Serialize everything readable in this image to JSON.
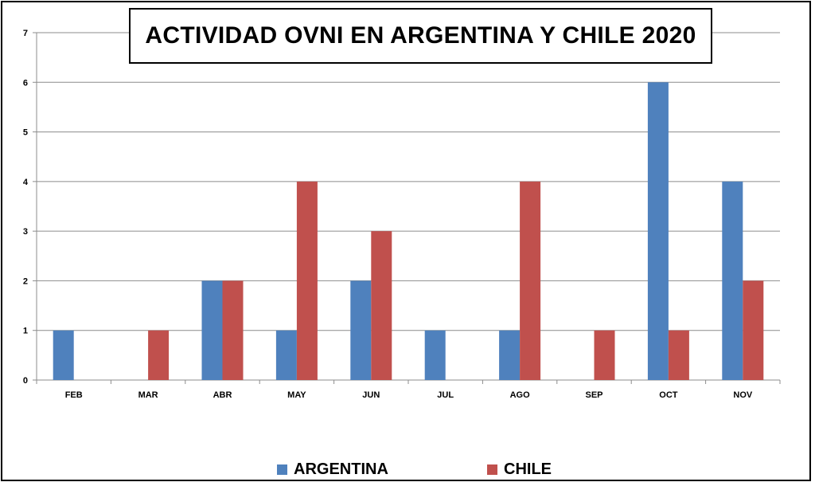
{
  "chart_data": {
    "type": "bar",
    "title": "ACTIVIDAD OVNI EN ARGENTINA Y CHILE 2020",
    "categories": [
      "FEB",
      "MAR",
      "ABR",
      "MAY",
      "JUN",
      "JUL",
      "AGO",
      "SEP",
      "OCT",
      "NOV"
    ],
    "series": [
      {
        "name": "ARGENTINA",
        "color": "#4f81bd",
        "values": [
          1,
          0,
          2,
          1,
          2,
          1,
          1,
          0,
          6,
          4
        ]
      },
      {
        "name": "CHILE",
        "color": "#c0504d",
        "values": [
          0,
          1,
          2,
          4,
          3,
          0,
          4,
          1,
          1,
          2
        ]
      }
    ],
    "ylim": [
      0,
      7
    ],
    "yticks": [
      "0",
      "1",
      "2",
      "3",
      "4",
      "5",
      "6",
      "7"
    ],
    "grid": true,
    "legend_position": "bottom"
  }
}
